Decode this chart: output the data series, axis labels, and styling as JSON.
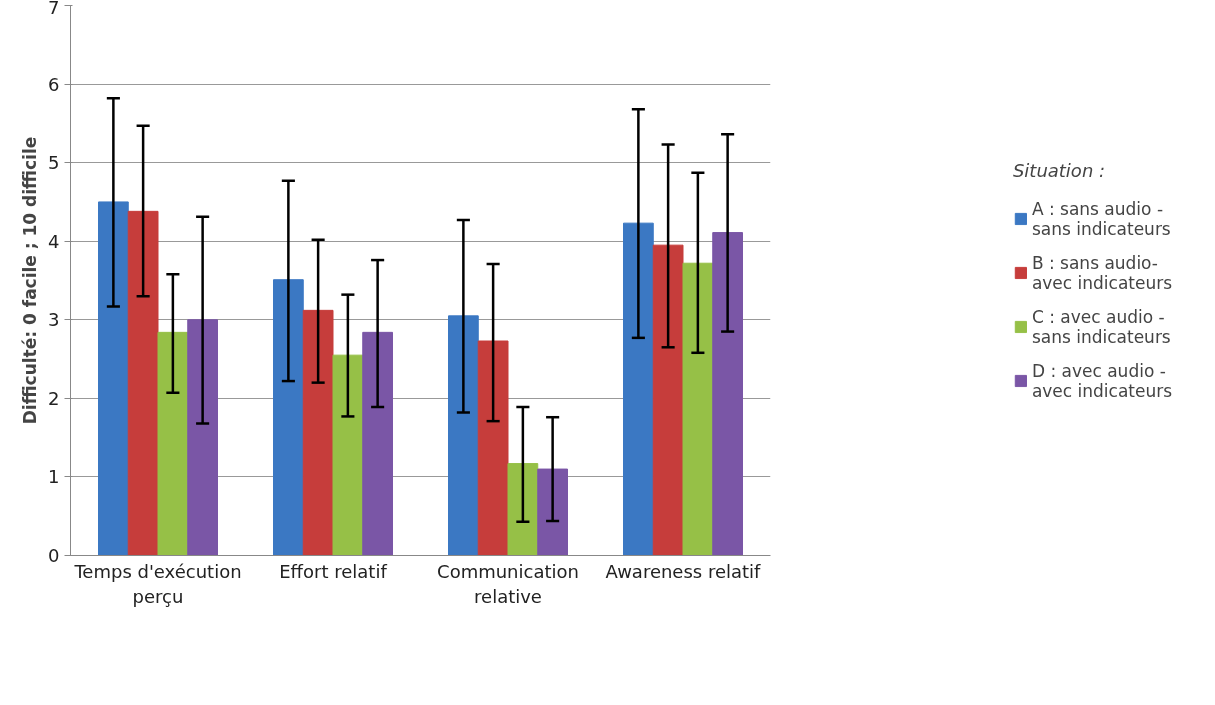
{
  "chart_data": {
    "type": "bar",
    "ylabel": "Difficulté: 0 facile ; 10 difficile",
    "legend_title": "Situation :",
    "categories": [
      "Temps d'exécution perçu",
      "Effort relatif",
      "Communication relative",
      "Awareness relatif"
    ],
    "series": [
      {
        "name": "A : sans audio - sans indicateurs",
        "color": "#3b78c3",
        "values": [
          4.5,
          3.51,
          3.05,
          4.23
        ],
        "errors": [
          [
            3.17,
            5.82
          ],
          [
            2.22,
            4.77
          ],
          [
            1.82,
            4.27
          ],
          [
            2.77,
            5.68
          ]
        ]
      },
      {
        "name": "B : sans audio-avec indicateurs",
        "color": "#c63d3b",
        "values": [
          4.38,
          3.12,
          2.73,
          3.95
        ],
        "errors": [
          [
            3.3,
            5.47
          ],
          [
            2.2,
            4.02
          ],
          [
            1.71,
            3.71
          ],
          [
            2.65,
            5.23
          ]
        ]
      },
      {
        "name": "C : avec audio - sans indicateurs",
        "color": "#96c047",
        "values": [
          2.84,
          2.55,
          1.17,
          3.72
        ],
        "errors": [
          [
            2.07,
            3.58
          ],
          [
            1.77,
            3.32
          ],
          [
            0.43,
            1.89
          ],
          [
            2.58,
            4.87
          ]
        ]
      },
      {
        "name": "D : avec audio - avec indicateurs",
        "color": "#7a56a6",
        "values": [
          3.0,
          2.84,
          1.1,
          4.11
        ],
        "errors": [
          [
            1.68,
            4.31
          ],
          [
            1.89,
            3.76
          ],
          [
            0.44,
            1.76
          ],
          [
            2.85,
            5.36
          ]
        ]
      }
    ],
    "ylim": [
      0,
      7
    ],
    "yticks": [
      0,
      1,
      2,
      3,
      4,
      5,
      6,
      7
    ],
    "grid": "y",
    "legend": "right"
  }
}
